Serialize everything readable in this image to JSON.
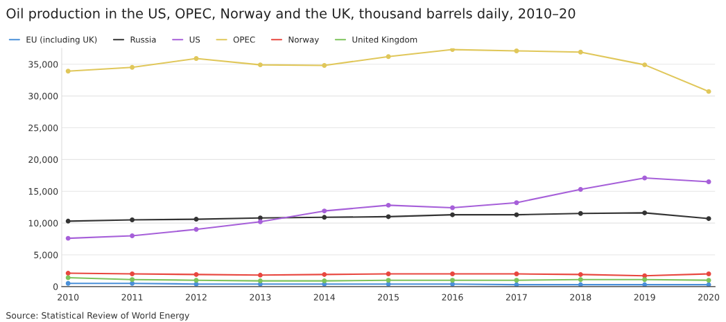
{
  "chart_data": {
    "type": "line",
    "title": "Oil production in the US, OPEC, Norway and the UK, thousand barrels daily, 2010–20",
    "categories": [
      "2010",
      "2011",
      "2012",
      "2013",
      "2014",
      "2015",
      "2016",
      "2017",
      "2018",
      "2019",
      "2020"
    ],
    "series": [
      {
        "name": "EU (including UK)",
        "color": "#4a90d9",
        "values": [
          500,
          500,
          400,
          400,
          400,
          400,
          400,
          300,
          300,
          300,
          300
        ]
      },
      {
        "name": "Russia",
        "color": "#333333",
        "values": [
          10300,
          10500,
          10600,
          10800,
          10900,
          11000,
          11300,
          11300,
          11500,
          11600,
          10700
        ]
      },
      {
        "name": "US",
        "color": "#a65fd9",
        "values": [
          7600,
          8000,
          9000,
          10200,
          11900,
          12800,
          12400,
          13200,
          15300,
          17100,
          16500
        ]
      },
      {
        "name": "OPEC",
        "color": "#e0c75a",
        "values": [
          33900,
          34500,
          35900,
          34900,
          34800,
          36200,
          37300,
          37100,
          36900,
          34900,
          30700
        ]
      },
      {
        "name": "Norway",
        "color": "#e8473f",
        "values": [
          2100,
          2000,
          1900,
          1800,
          1900,
          2000,
          2000,
          2000,
          1900,
          1700,
          2000
        ]
      },
      {
        "name": "United Kingdom",
        "color": "#7dc35b",
        "values": [
          1400,
          1100,
          1000,
          900,
          900,
          1000,
          1000,
          1000,
          1100,
          1100,
          1000
        ]
      }
    ],
    "ylim": [
      0,
      37500
    ],
    "yticks": [
      {
        "value": 0,
        "label": "0"
      },
      {
        "value": 5000,
        "label": "5,000"
      },
      {
        "value": 10000,
        "label": "10,000"
      },
      {
        "value": 15000,
        "label": "15,000"
      },
      {
        "value": 20000,
        "label": "20,000"
      },
      {
        "value": 25000,
        "label": "25,000"
      },
      {
        "value": 30000,
        "label": "30,000"
      },
      {
        "value": 35000,
        "label": "35,000"
      }
    ],
    "grid": "y",
    "legend": "top left",
    "marker": "circle",
    "line_style": "solid",
    "annotations": [
      "Source: Statistical Review of World Energy"
    ]
  }
}
